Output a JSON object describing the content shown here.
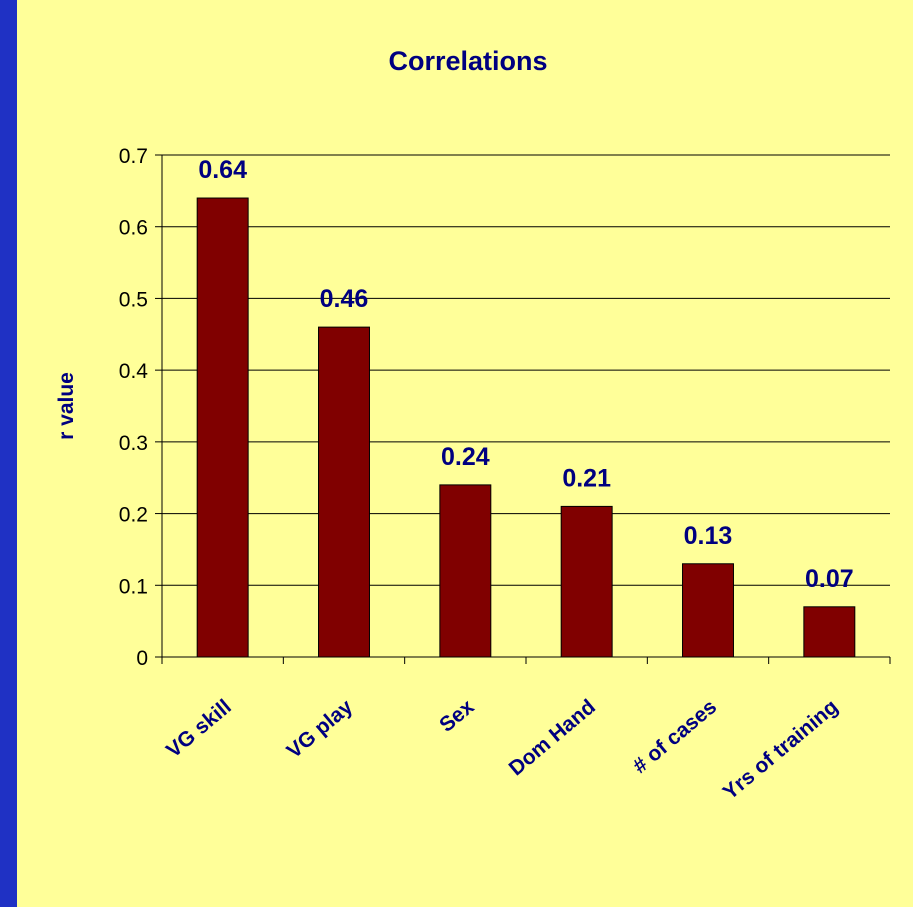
{
  "chart_data": {
    "type": "bar",
    "title": "Correlations",
    "xlabel": "",
    "ylabel": "r value",
    "categories": [
      "VG skill",
      "VG play",
      "Sex",
      "Dom Hand",
      "# of cases",
      "Yrs of training"
    ],
    "values": [
      0.64,
      0.46,
      0.24,
      0.21,
      0.13,
      0.07
    ],
    "data_labels": [
      "0.64",
      "0.46",
      "0.24",
      "0.21",
      "0.13",
      "0.07"
    ],
    "yticks": [
      "0",
      "0.1",
      "0.2",
      "0.3",
      "0.4",
      "0.5",
      "0.6",
      "0.7"
    ],
    "ylim": [
      0,
      0.7
    ],
    "grid": true,
    "legend": "none"
  },
  "colors": {
    "background": "#1f31c4",
    "plot_area": "#ffff99",
    "bar": "#800000",
    "text_accent": "#000080"
  }
}
